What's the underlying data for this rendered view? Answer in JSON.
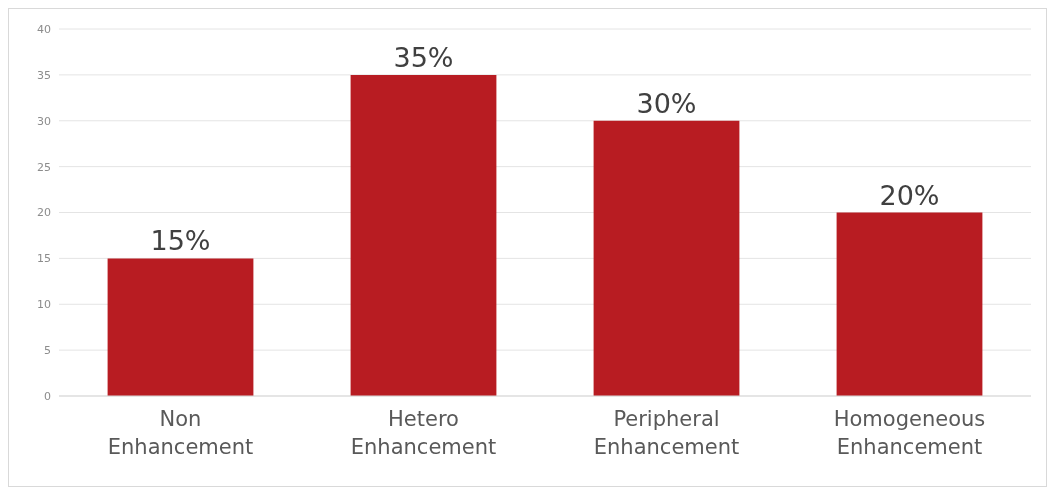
{
  "chart_data": {
    "type": "bar",
    "categories": [
      "Non Enhancement",
      "Hetero Enhancement",
      "Peripheral Enhancement",
      "Homogeneous Enhancement"
    ],
    "values": [
      15,
      35,
      30,
      20
    ],
    "value_labels": [
      "15%",
      "35%",
      "30%",
      "20%"
    ],
    "color": "#b81c22",
    "ylim": [
      0,
      40
    ],
    "yticks": [
      0,
      5,
      10,
      15,
      20,
      25,
      30,
      35,
      40
    ],
    "grid": "y"
  }
}
